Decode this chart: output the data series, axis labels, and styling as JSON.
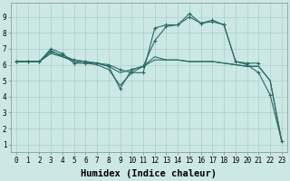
{
  "xlabel": "Humidex (Indice chaleur)",
  "background_color": "#cce8e4",
  "grid_color": "#aacfcb",
  "line_color": "#2a6b66",
  "xlim": [
    -0.5,
    23.5
  ],
  "ylim": [
    0.5,
    9.9
  ],
  "xticks": [
    0,
    1,
    2,
    3,
    4,
    5,
    6,
    7,
    8,
    9,
    10,
    11,
    12,
    13,
    14,
    15,
    16,
    17,
    18,
    19,
    20,
    21,
    22,
    23
  ],
  "yticks": [
    1,
    2,
    3,
    4,
    5,
    6,
    7,
    8,
    9
  ],
  "series": [
    {
      "x": [
        0,
        1,
        2,
        3,
        4,
        5,
        6,
        7,
        8,
        9,
        10,
        11,
        12,
        13,
        14,
        15,
        16,
        17,
        18,
        19,
        20,
        21
      ],
      "y": [
        6.2,
        6.2,
        6.2,
        7.0,
        6.7,
        6.1,
        6.1,
        6.1,
        6.0,
        5.7,
        5.5,
        5.5,
        8.3,
        8.5,
        8.5,
        9.2,
        8.6,
        8.7,
        8.5,
        6.2,
        6.1,
        6.1
      ],
      "marker": true
    },
    {
      "x": [
        0,
        1,
        2,
        3,
        4,
        5,
        6,
        7,
        8,
        9,
        10,
        11,
        12,
        13,
        14,
        15,
        16,
        17,
        18,
        19,
        20,
        21,
        22,
        23
      ],
      "y": [
        6.2,
        6.2,
        6.2,
        6.8,
        6.6,
        6.3,
        6.2,
        6.1,
        5.9,
        4.5,
        5.7,
        5.9,
        7.5,
        8.4,
        8.5,
        9.0,
        8.6,
        8.8,
        8.5,
        6.2,
        6.0,
        5.5,
        4.1,
        1.2
      ],
      "marker": true
    },
    {
      "x": [
        0,
        1,
        2,
        3,
        4,
        5,
        6,
        7,
        8,
        9,
        10,
        11,
        12,
        13,
        14,
        15,
        16,
        17,
        18,
        19,
        20,
        21,
        22,
        23
      ],
      "y": [
        6.2,
        6.2,
        6.2,
        6.7,
        6.5,
        6.3,
        6.2,
        6.1,
        5.9,
        5.5,
        5.7,
        5.9,
        6.3,
        6.3,
        6.3,
        6.2,
        6.2,
        6.2,
        6.1,
        6.0,
        5.9,
        5.9,
        5.0,
        1.2
      ],
      "marker": false
    },
    {
      "x": [
        0,
        1,
        2,
        3,
        4,
        5,
        6,
        7,
        8,
        9,
        10,
        11,
        12,
        13,
        14,
        15,
        16,
        17,
        18,
        19,
        20,
        21,
        22,
        23
      ],
      "y": [
        6.2,
        6.2,
        6.2,
        6.9,
        6.5,
        6.2,
        6.1,
        6.0,
        5.7,
        4.7,
        5.5,
        5.9,
        6.5,
        6.3,
        6.3,
        6.2,
        6.2,
        6.2,
        6.1,
        6.0,
        5.9,
        5.9,
        5.0,
        1.2
      ],
      "marker": false
    }
  ],
  "tick_fontsize": 5.5,
  "label_fontsize": 7.5
}
